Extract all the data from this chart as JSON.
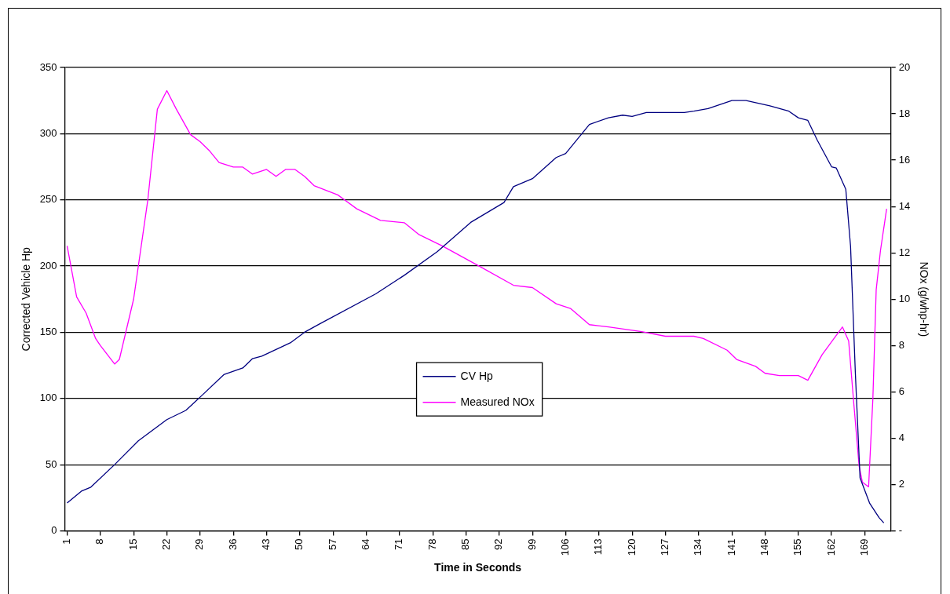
{
  "chart_data": {
    "type": "line",
    "xlabel": "Time in Seconds",
    "ylabel": "Corrected Vehicle Hp",
    "y2label": "NOx (g/whp-hr)",
    "xlim": [
      0.5,
      174.5
    ],
    "xticks": [
      1,
      8,
      15,
      22,
      29,
      36,
      43,
      50,
      57,
      64,
      71,
      78,
      85,
      92,
      99,
      106,
      113,
      120,
      127,
      134,
      141,
      148,
      155,
      162,
      169
    ],
    "ylim": [
      0,
      350
    ],
    "yticks": [
      0,
      50,
      100,
      150,
      200,
      250,
      300,
      350
    ],
    "y2lim": [
      0,
      20
    ],
    "y2ticks": [
      {
        "value": 0,
        "label": "-"
      },
      2,
      4,
      6,
      8,
      10,
      12,
      14,
      16,
      18,
      20
    ],
    "grid": "y",
    "legend": "center",
    "marker": "none",
    "line_style": "solid",
    "series": [
      {
        "name": "CV Hp",
        "color": "#000080",
        "x": [
          1,
          4,
          6,
          11,
          16,
          22,
          26,
          29,
          34,
          38,
          40,
          42,
          48,
          51,
          54,
          66,
          72,
          79,
          86,
          93,
          95,
          99,
          104,
          106,
          111,
          115,
          118,
          120,
          123,
          131,
          133,
          136,
          141,
          144,
          149,
          153,
          155,
          157,
          159,
          162,
          163,
          165,
          166,
          167,
          168,
          170,
          172,
          173
        ],
        "values": [
          21,
          30,
          33,
          50,
          68,
          84,
          91,
          101,
          118,
          123,
          130,
          132,
          142,
          150,
          156,
          179,
          193,
          211,
          233,
          248,
          260,
          266,
          282,
          285,
          307,
          312,
          314,
          313,
          316,
          316,
          317,
          319,
          325,
          325,
          321,
          317,
          312,
          310,
          295,
          275,
          274,
          258,
          215,
          120,
          40,
          21,
          10,
          6
        ]
      },
      {
        "name": "Measured NOx",
        "color": "#ff00ff",
        "axis": "y2",
        "x": [
          1,
          3,
          5,
          7,
          8,
          11,
          12,
          15,
          18,
          20,
          22,
          24,
          27,
          29,
          31,
          33,
          36,
          38,
          40,
          43,
          45,
          47,
          49,
          51,
          53,
          58,
          62,
          67,
          72,
          75,
          80,
          88,
          95,
          99,
          104,
          107,
          111,
          115,
          122,
          127,
          133,
          135,
          140,
          142,
          146,
          148,
          151,
          155,
          157,
          160,
          164.3,
          165.6,
          166.6,
          167.8,
          168.5,
          169.8,
          170.7,
          171.4,
          172.3,
          173.6
        ],
        "values": [
          12.3,
          10.1,
          9.4,
          8.3,
          8.0,
          7.2,
          7.4,
          10.0,
          14.3,
          18.2,
          19.0,
          18.2,
          17.1,
          16.8,
          16.4,
          15.9,
          15.7,
          15.7,
          15.4,
          15.6,
          15.3,
          15.6,
          15.6,
          15.3,
          14.9,
          14.5,
          13.9,
          13.4,
          13.3,
          12.8,
          12.3,
          11.4,
          10.6,
          10.5,
          9.8,
          9.6,
          8.9,
          8.8,
          8.6,
          8.4,
          8.4,
          8.3,
          7.8,
          7.4,
          7.1,
          6.8,
          6.7,
          6.7,
          6.5,
          7.6,
          8.8,
          8.2,
          5.7,
          2.8,
          2.1,
          1.9,
          5.7,
          10.4,
          12.1,
          13.9
        ]
      }
    ]
  }
}
